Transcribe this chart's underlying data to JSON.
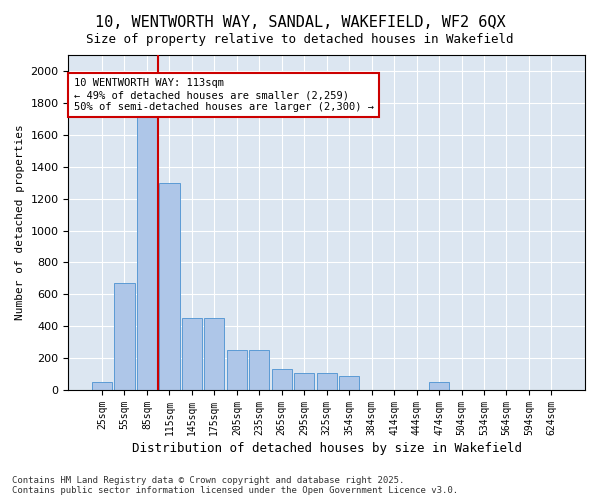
{
  "title": "10, WENTWORTH WAY, SANDAL, WAKEFIELD, WF2 6QX",
  "subtitle": "Size of property relative to detached houses in Wakefield",
  "xlabel": "Distribution of detached houses by size in Wakefield",
  "ylabel": "Number of detached properties",
  "bar_values": [
    50,
    670,
    1900,
    1300,
    450,
    450,
    250,
    250,
    130,
    110,
    110,
    90,
    0,
    0,
    0,
    50,
    0,
    0,
    0,
    0,
    0
  ],
  "categories": [
    "25sqm",
    "55sqm",
    "85sqm",
    "115sqm",
    "145sqm",
    "175sqm",
    "205sqm",
    "235sqm",
    "265sqm",
    "295sqm",
    "325sqm",
    "354sqm",
    "384sqm",
    "414sqm",
    "444sqm",
    "474sqm",
    "504sqm",
    "534sqm",
    "564sqm",
    "594sqm",
    "624sqm"
  ],
  "bar_color": "#aec6e8",
  "bar_edge_color": "#5b9bd5",
  "bg_color": "#dce6f1",
  "grid_color": "#ffffff",
  "vline_color": "#cc0000",
  "annotation_text": "10 WENTWORTH WAY: 113sqm\n← 49% of detached houses are smaller (2,259)\n50% of semi-detached houses are larger (2,300) →",
  "annotation_box_color": "#cc0000",
  "annotation_bg": "#ffffff",
  "footnote": "Contains HM Land Registry data © Crown copyright and database right 2025.\nContains public sector information licensed under the Open Government Licence v3.0.",
  "ylim": [
    0,
    2000
  ],
  "yticks": [
    0,
    200,
    400,
    600,
    800,
    1000,
    1200,
    1400,
    1600,
    1800,
    2000
  ]
}
